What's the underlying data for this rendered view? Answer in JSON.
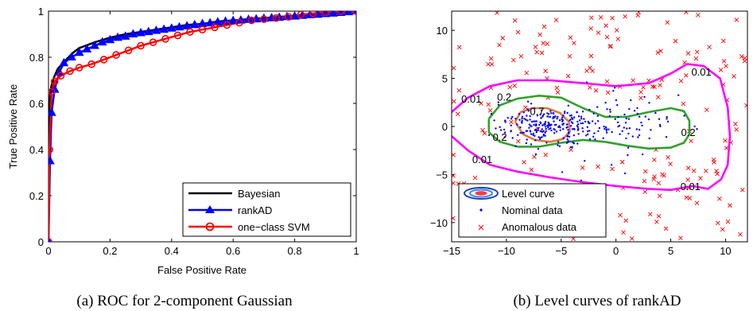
{
  "chart_data": [
    {
      "type": "line",
      "caption": "(a) ROC for 2-component Gaussian",
      "xlabel": "False Positive Rate",
      "ylabel": "True Positive Rate",
      "xlim": [
        0,
        1
      ],
      "ylim": [
        0,
        1
      ],
      "xticks": [
        "0",
        "0.2",
        "0.4",
        "0.6",
        "0.8",
        "1"
      ],
      "yticks": [
        "0",
        "0.2",
        "0.4",
        "0.6",
        "0.8",
        "1"
      ],
      "legend_position": "bottom-right",
      "series": [
        {
          "name": "Bayesian",
          "color": "#000000",
          "marker": "none",
          "x": [
            0,
            0.002,
            0.005,
            0.01,
            0.02,
            0.03,
            0.05,
            0.08,
            0.1,
            0.15,
            0.2,
            0.25,
            0.3,
            0.35,
            0.4,
            0.45,
            0.5,
            0.55,
            0.6,
            0.65,
            0.7,
            0.75,
            0.8,
            0.85,
            0.9,
            0.95,
            1.0
          ],
          "y": [
            0,
            0.5,
            0.64,
            0.68,
            0.72,
            0.75,
            0.78,
            0.82,
            0.84,
            0.865,
            0.885,
            0.9,
            0.91,
            0.92,
            0.93,
            0.94,
            0.945,
            0.955,
            0.96,
            0.965,
            0.97,
            0.975,
            0.98,
            0.985,
            0.99,
            0.995,
            1.0
          ]
        },
        {
          "name": "rankAD",
          "color": "#0000ff",
          "marker": "triangle",
          "x": [
            0,
            0.005,
            0.01,
            0.02,
            0.035,
            0.05,
            0.075,
            0.1,
            0.125,
            0.15,
            0.175,
            0.2,
            0.225,
            0.25,
            0.275,
            0.3,
            0.325,
            0.35,
            0.375,
            0.4,
            0.425,
            0.45,
            0.475,
            0.5,
            0.525,
            0.55,
            0.575,
            0.6,
            0.625,
            0.65,
            0.675,
            0.7,
            0.725,
            0.75,
            0.775,
            0.8,
            0.825,
            0.85,
            0.875,
            0.9,
            0.925,
            0.95,
            0.975,
            1.0
          ],
          "y": [
            0,
            0.35,
            0.56,
            0.66,
            0.735,
            0.775,
            0.8,
            0.82,
            0.835,
            0.85,
            0.865,
            0.875,
            0.885,
            0.89,
            0.9,
            0.905,
            0.91,
            0.915,
            0.92,
            0.925,
            0.93,
            0.935,
            0.94,
            0.945,
            0.948,
            0.952,
            0.955,
            0.958,
            0.96,
            0.963,
            0.965,
            0.968,
            0.97,
            0.972,
            0.975,
            0.977,
            0.98,
            0.983,
            0.985,
            0.988,
            0.99,
            0.993,
            0.996,
            1.0
          ]
        },
        {
          "name": "one−class SVM",
          "color": "#ff0000",
          "marker": "circle",
          "x": [
            0,
            0.003,
            0.01,
            0.02,
            0.04,
            0.07,
            0.1,
            0.14,
            0.18,
            0.22,
            0.26,
            0.3,
            0.34,
            0.38,
            0.42,
            0.46,
            0.5,
            0.54,
            0.58,
            0.62,
            0.66,
            0.7,
            0.74,
            0.78,
            0.82,
            0.86,
            0.9,
            0.95,
            1.0
          ],
          "y": [
            0,
            0.4,
            0.65,
            0.695,
            0.72,
            0.74,
            0.755,
            0.77,
            0.79,
            0.81,
            0.83,
            0.85,
            0.865,
            0.88,
            0.895,
            0.91,
            0.92,
            0.93,
            0.94,
            0.95,
            0.96,
            0.965,
            0.97,
            0.975,
            0.985,
            0.99,
            0.995,
            1.0,
            1.0
          ]
        }
      ]
    },
    {
      "type": "scatter",
      "caption": "(b) Level curves of rankAD",
      "xlim": [
        -15,
        12
      ],
      "ylim": [
        -12,
        12
      ],
      "xticks": [
        -15,
        -10,
        -5,
        0,
        5,
        10
      ],
      "yticks": [
        -10,
        -5,
        0,
        5,
        10
      ],
      "legend_position": "bottom-left",
      "legend": [
        "Level curve",
        "Nominal data",
        "Anomalous data"
      ],
      "contour_labels": [
        {
          "text": "0.01",
          "x": 7.8,
          "y": 5.3
        },
        {
          "text": "0.01",
          "x": -13.2,
          "y": 2.5
        },
        {
          "text": "0.01",
          "x": -12.2,
          "y": -3.8
        },
        {
          "text": "0.01",
          "x": 6.8,
          "y": -6.6
        },
        {
          "text": "0.2",
          "x": -10.2,
          "y": 2.7
        },
        {
          "text": "0.2",
          "x": -10.6,
          "y": -1.5
        },
        {
          "text": "0.2",
          "x": 6.6,
          "y": -1.0
        },
        {
          "text": "0.7",
          "x": -7.2,
          "y": 1.2
        }
      ],
      "contours": [
        {
          "level": 0.01,
          "color": "#ff00ff",
          "x": [
            -15,
            -13.5,
            -11.5,
            -9,
            -6,
            -3,
            0,
            3,
            5,
            6.5,
            8,
            9.5,
            10.2,
            10.4,
            10.2,
            9.6,
            8.4,
            7,
            5,
            3,
            0,
            -3,
            -6,
            -9,
            -11.5,
            -13.5,
            -15
          ],
          "y": [
            1.5,
            3,
            4.2,
            4.8,
            4.8,
            4.5,
            4.2,
            4.5,
            5.5,
            6.5,
            6.3,
            5,
            2,
            -1,
            -4,
            -5.5,
            -6.5,
            -6.2,
            -6.6,
            -6.5,
            -6.2,
            -5.8,
            -5.3,
            -4.7,
            -4,
            -2.5,
            -1
          ]
        },
        {
          "level": 0.2,
          "color": "#33a02c",
          "x": [
            -11.6,
            -10.6,
            -9,
            -7,
            -5,
            -3,
            -1,
            1,
            3,
            5,
            6.2,
            6.7,
            6.7,
            6.2,
            5,
            3,
            1,
            -1,
            -3,
            -5,
            -7,
            -9,
            -10.6,
            -11.6,
            -11.6
          ],
          "y": [
            0.8,
            2.2,
            2.9,
            3.2,
            3.0,
            1.9,
            1.0,
            1.0,
            1.5,
            1.9,
            1.6,
            0.6,
            -0.8,
            -1.7,
            -2.2,
            -2.3,
            -2.0,
            -1.6,
            -1.4,
            -1.7,
            -2.1,
            -2.1,
            -1.6,
            -0.6,
            0.8
          ]
        },
        {
          "level": 0.7,
          "color": "#e07b39",
          "x": [
            -9.2,
            -8.7,
            -7.6,
            -6.3,
            -5.1,
            -4.3,
            -4.2,
            -4.8,
            -6.0,
            -7.4,
            -8.5,
            -9.2
          ],
          "y": [
            0.5,
            1.5,
            1.9,
            1.9,
            1.4,
            0.5,
            -0.5,
            -1.3,
            -1.6,
            -1.4,
            -0.8,
            0.5
          ]
        }
      ]
    }
  ]
}
